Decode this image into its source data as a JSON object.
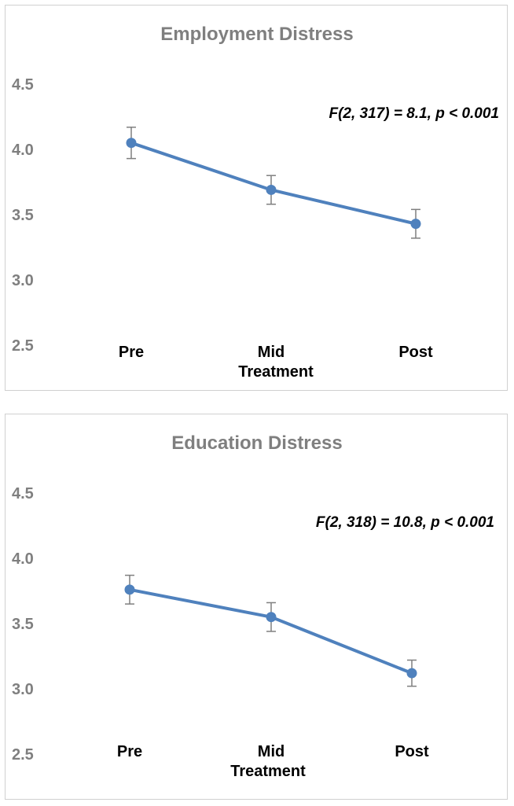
{
  "chart_data": [
    {
      "type": "line",
      "title": "Employment Distress",
      "categories": [
        "Pre",
        "Mid",
        "Post"
      ],
      "xlabel": "Treatment",
      "ylabel": "",
      "yticks": [
        "4.5",
        "4.0",
        "3.5",
        "3.0",
        "2.5"
      ],
      "ylim": [
        2.5,
        4.5
      ],
      "values": [
        4.05,
        3.69,
        3.43
      ],
      "error": [
        0.12,
        0.11,
        0.11
      ],
      "annotation": "F(2, 317) = 8.1, p < 0.001",
      "color": "#4f81bd",
      "grid": false
    },
    {
      "type": "line",
      "title": "Education Distress",
      "categories": [
        "Pre",
        "Mid",
        "Post"
      ],
      "xlabel": "Treatment",
      "ylabel": "",
      "yticks": [
        "4.5",
        "4.0",
        "3.5",
        "3.0",
        "2.5"
      ],
      "ylim": [
        2.5,
        4.5
      ],
      "values": [
        3.76,
        3.55,
        3.12
      ],
      "error": [
        0.11,
        0.11,
        0.1
      ],
      "annotation": "F(2, 318) = 10.8, p < 0.001",
      "color": "#4f81bd",
      "grid": false
    }
  ]
}
